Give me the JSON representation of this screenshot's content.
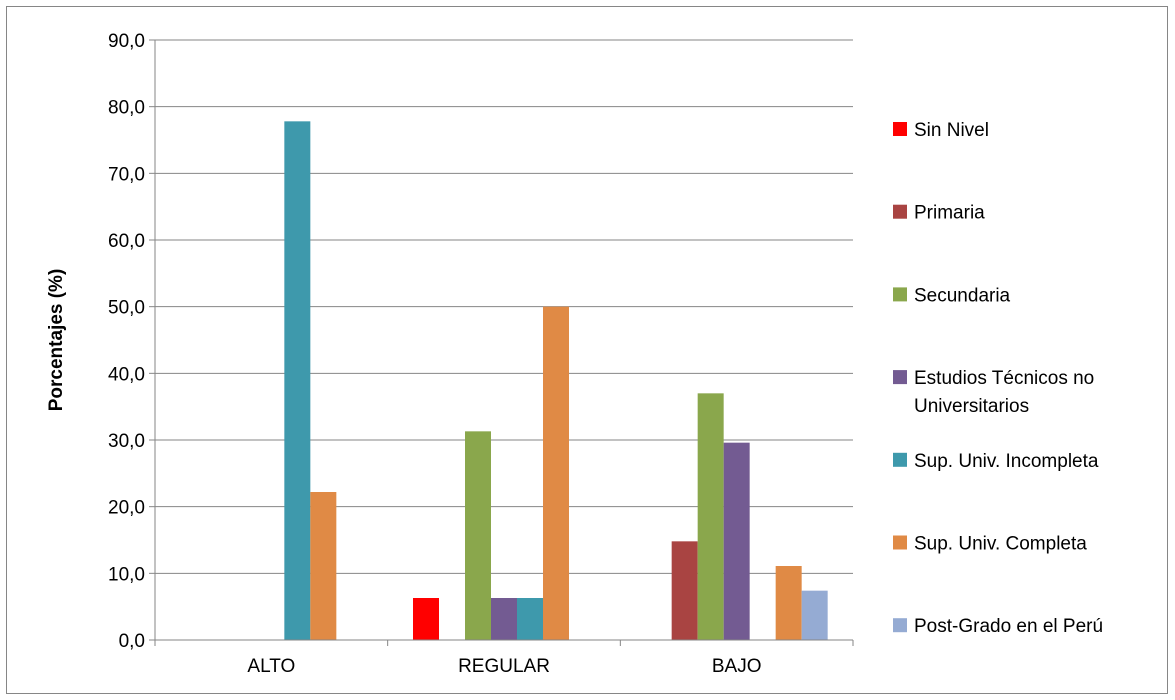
{
  "chart_data": {
    "type": "bar",
    "title": "",
    "xlabel": "",
    "ylabel": "Porcentajes (%)",
    "ylim": [
      0,
      90
    ],
    "yticks": [
      "0,0",
      "10,0",
      "20,0",
      "30,0",
      "40,0",
      "50,0",
      "60,0",
      "70,0",
      "80,0",
      "90,0"
    ],
    "grid": true,
    "legend_position": "right",
    "categories": [
      "ALTO",
      "REGULAR",
      "BAJO"
    ],
    "series": [
      {
        "name": "Sin Nivel",
        "legend_lines": [
          "Sin Nivel"
        ],
        "color": "#FF0000",
        "values": [
          0,
          6.3,
          0
        ]
      },
      {
        "name": "Primaria",
        "legend_lines": [
          "Primaria"
        ],
        "color": "#A94442",
        "values": [
          0,
          0,
          14.8
        ]
      },
      {
        "name": "Secundaria",
        "legend_lines": [
          "Secundaria"
        ],
        "color": "#8AA74C",
        "values": [
          0,
          31.3,
          37.0
        ]
      },
      {
        "name": "Estudios Técnicos no Universitarios",
        "legend_lines": [
          "Estudios Técnicos no",
          "Universitarios"
        ],
        "color": "#735B92",
        "values": [
          0,
          6.3,
          29.6
        ]
      },
      {
        "name": "Sup. Univ. Incompleta",
        "legend_lines": [
          "Sup. Univ. Incompleta"
        ],
        "color": "#3E99AC",
        "values": [
          77.8,
          6.3,
          0
        ]
      },
      {
        "name": "Sup. Univ. Completa",
        "legend_lines": [
          "Sup. Univ. Completa"
        ],
        "color": "#E08A45",
        "values": [
          22.2,
          50.0,
          11.1
        ]
      },
      {
        "name": "Post-Grado en el Perú",
        "legend_lines": [
          "Post-Grado en el Perú"
        ],
        "color": "#95ABD3",
        "values": [
          0,
          0,
          7.4
        ]
      }
    ]
  }
}
